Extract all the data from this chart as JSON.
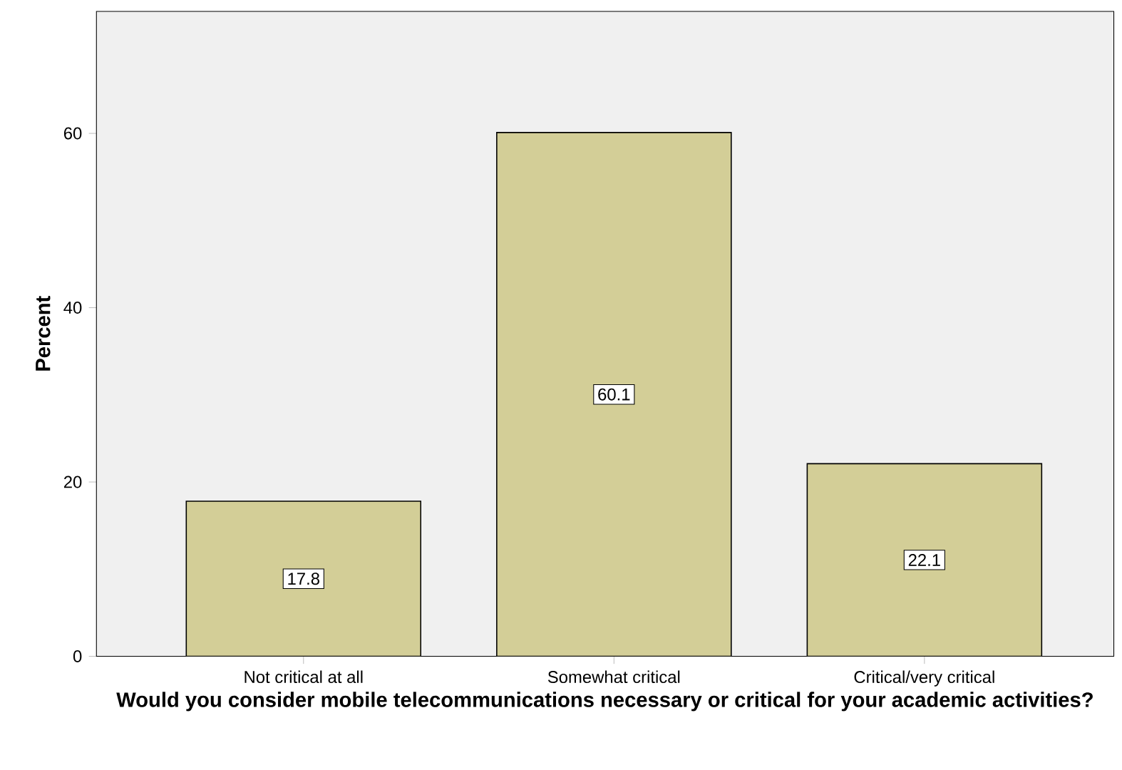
{
  "chart_data": {
    "type": "bar",
    "xlabel": "Would you consider mobile telecommunications necessary or critical for your academic activities?",
    "ylabel": "Percent",
    "categories": [
      "Not critical at all",
      "Somewhat critical",
      "Critical/very critical"
    ],
    "values": [
      17.8,
      60.1,
      22.1
    ],
    "color": "#d3ce97",
    "ylim": [
      0,
      74
    ],
    "yticks": [
      0,
      20,
      40,
      60
    ],
    "data_labels": true
  }
}
